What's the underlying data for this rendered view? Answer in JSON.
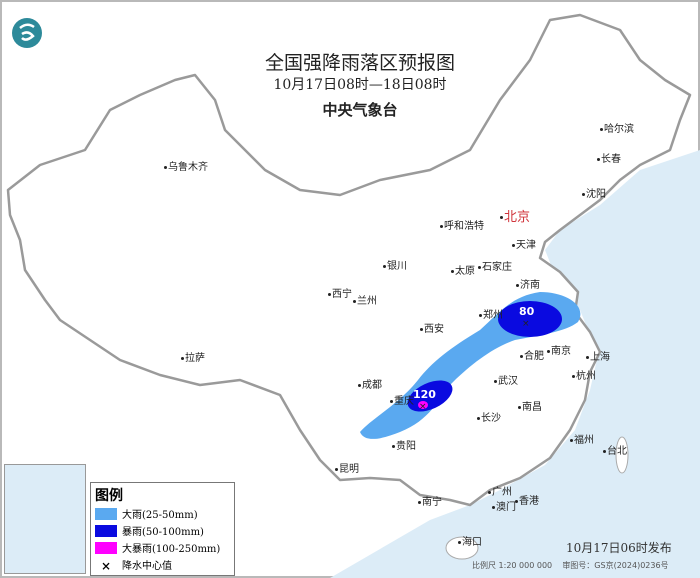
{
  "title": "全国强降雨落区预报图",
  "period": "10月17日08时—18日08时",
  "issuer": "中央气象台",
  "logo": "cma-logo",
  "colors": {
    "heavy_rain": "#5aa9f0",
    "rainstorm": "#0a0ae0",
    "heavy_rainstorm": "#ff00ff",
    "sea": "#dcecf7",
    "capital": "#d0333a"
  },
  "cities": [
    {
      "name": "乌鲁木齐"
    },
    {
      "name": "哈尔滨"
    },
    {
      "name": "长春"
    },
    {
      "name": "沈阳"
    },
    {
      "name": "北京"
    },
    {
      "name": "天津"
    },
    {
      "name": "呼和浩特"
    },
    {
      "name": "石家庄"
    },
    {
      "name": "太原"
    },
    {
      "name": "银川"
    },
    {
      "name": "济南"
    },
    {
      "name": "西宁"
    },
    {
      "name": "兰州"
    },
    {
      "name": "郑州"
    },
    {
      "name": "西安"
    },
    {
      "name": "南京"
    },
    {
      "name": "合肥"
    },
    {
      "name": "上海"
    },
    {
      "name": "拉萨"
    },
    {
      "name": "成都"
    },
    {
      "name": "武汉"
    },
    {
      "name": "杭州"
    },
    {
      "name": "重庆"
    },
    {
      "name": "南昌"
    },
    {
      "name": "长沙"
    },
    {
      "name": "福州"
    },
    {
      "name": "台北"
    },
    {
      "name": "贵阳"
    },
    {
      "name": "昆明"
    },
    {
      "name": "南宁"
    },
    {
      "name": "广州"
    },
    {
      "name": "澳门"
    },
    {
      "name": "香港"
    },
    {
      "name": "海口"
    }
  ],
  "precip_centers": [
    {
      "value": "80"
    },
    {
      "value": "120"
    }
  ],
  "legend": {
    "title": "图例",
    "items": [
      {
        "label": "大雨(25-50mm)",
        "color": "#5aa9f0"
      },
      {
        "label": "暴雨(50-100mm)",
        "color": "#0a0ae0"
      },
      {
        "label": "大暴雨(100-250mm)",
        "color": "#ff00ff"
      },
      {
        "label": "降水中心值",
        "symbol": "×"
      }
    ]
  },
  "published": "10月17日06时发布",
  "scale": "比例尺 1:20 000 000",
  "approval": "审图号：GS京(2024)0236号"
}
